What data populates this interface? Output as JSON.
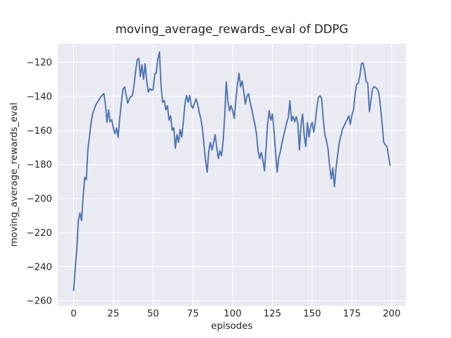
{
  "figure": {
    "background": "#ffffff"
  },
  "chart_data": {
    "type": "line",
    "title": "moving_average_rewards_eval of DDPG",
    "xlabel": "episodes",
    "ylabel": "moving_average_rewards_eval",
    "grid": true,
    "legend_position": "none",
    "line_color": "#4c72b0",
    "axes_background": "#eaeaf2",
    "grid_color": "#ffffff",
    "text_color": "#262626",
    "xlim": [
      -9.95,
      208.95
    ],
    "ylim": [
      -263.1,
      -109.1
    ],
    "xticks": [
      0,
      25,
      50,
      75,
      100,
      125,
      150,
      175,
      200
    ],
    "xtick_labels": [
      "0",
      "25",
      "50",
      "75",
      "100",
      "125",
      "150",
      "175",
      "200"
    ],
    "yticks": [
      -120,
      -140,
      -160,
      -180,
      -200,
      -220,
      -240,
      -260
    ],
    "ytick_labels": [
      "−120",
      "−140",
      "−160",
      "−180",
      "−200",
      "−220",
      "−240",
      "−260"
    ],
    "x_start": 0,
    "x_step": 1,
    "values": [
      -254,
      -241,
      -230,
      -213,
      -208.5,
      -213,
      -199,
      -187.5,
      -189,
      -171,
      -163.5,
      -155.5,
      -150,
      -147.5,
      -145,
      -143.5,
      -142,
      -140.5,
      -139.3,
      -138.4,
      -145,
      -155.3,
      -148,
      -155,
      -153.7,
      -158.6,
      -162,
      -158.6,
      -164.1,
      -153,
      -144,
      -136,
      -134.5,
      -139,
      -144.1,
      -141.5,
      -140.2,
      -139.6,
      -133.5,
      -125,
      -118.6,
      -117.7,
      -128.5,
      -121.5,
      -130,
      -120.8,
      -131.5,
      -137.5,
      -135.5,
      -136.5,
      -136,
      -127,
      -126.2,
      -118,
      -114,
      -134,
      -143.5,
      -142.5,
      -148,
      -145.5,
      -154,
      -151.5,
      -160,
      -158.5,
      -170.5,
      -162.5,
      -167,
      -159.5,
      -164,
      -155,
      -144.5,
      -139.5,
      -143.5,
      -139.5,
      -145.5,
      -147,
      -144,
      -141.5,
      -144.5,
      -149.5,
      -153,
      -159,
      -168.5,
      -178,
      -184.5,
      -172,
      -167,
      -171.5,
      -167.5,
      -162.5,
      -170,
      -176.5,
      -172,
      -175,
      -166.5,
      -152,
      -131.5,
      -143,
      -148.5,
      -145.5,
      -148.5,
      -153,
      -142.5,
      -133,
      -126.5,
      -134.5,
      -131,
      -137.5,
      -144.5,
      -140,
      -138.5,
      -143.5,
      -147.5,
      -152.5,
      -156.5,
      -162,
      -172,
      -176.5,
      -173,
      -177.5,
      -183.8,
      -170.5,
      -156,
      -148.5,
      -154,
      -150.5,
      -160,
      -173,
      -184.5,
      -176,
      -172.5,
      -167.5,
      -163.5,
      -159.5,
      -155.5,
      -152.5,
      -142.5,
      -154.5,
      -151.7,
      -155,
      -152,
      -156,
      -171.5,
      -157,
      -150.5,
      -163,
      -169.5,
      -155.5,
      -164,
      -158,
      -155.3,
      -161,
      -155,
      -146.5,
      -140.5,
      -139.8,
      -141.5,
      -153.5,
      -162.5,
      -166,
      -171,
      -181,
      -188.5,
      -182,
      -193,
      -182.5,
      -174.5,
      -167.5,
      -163.5,
      -159.5,
      -157.5,
      -155.5,
      -153.5,
      -151.5,
      -156.5,
      -151,
      -147.8,
      -138.5,
      -133,
      -132.4,
      -128,
      -120.8,
      -120.4,
      -125,
      -131.5,
      -132.3,
      -149,
      -142,
      -135.5,
      -134.3,
      -135,
      -135.8,
      -138.5,
      -146.5,
      -156,
      -167,
      -168.5,
      -169.5,
      -175,
      -180.5
    ]
  }
}
